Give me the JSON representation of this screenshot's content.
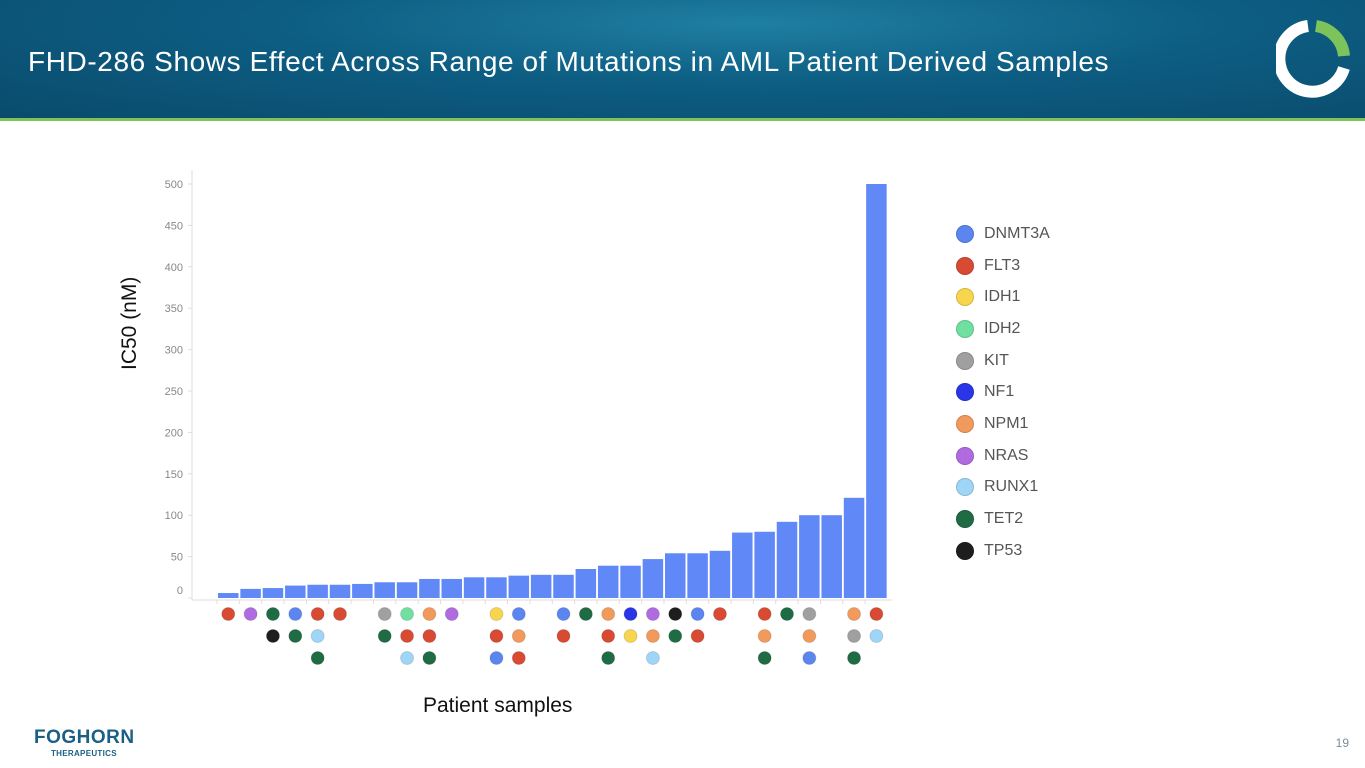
{
  "header": {
    "title": "FHD-286 Shows Effect Across Range of Mutations in AML Patient Derived Samples"
  },
  "footer": {
    "logo_text": "FOGHORN",
    "logo_sub": "THERAPEUTICS",
    "page_number": "19"
  },
  "colors": {
    "bar": "#6088f7",
    "logo_green": "#7cc35b",
    "brand_blue": "#1b5f86"
  },
  "chart_data": {
    "type": "bar",
    "title": "",
    "xlabel": "Patient samples",
    "ylabel": "IC50 (nM)",
    "ylim": [
      0,
      500
    ],
    "yticks": [
      0,
      50,
      100,
      150,
      200,
      250,
      300,
      350,
      400,
      450,
      500
    ],
    "values": [
      6,
      11,
      12,
      15,
      16,
      16,
      17,
      19,
      19,
      23,
      23,
      25,
      25,
      27,
      28,
      28,
      35,
      39,
      39,
      47,
      54,
      54,
      57,
      79,
      80,
      92,
      100,
      100,
      121,
      500
    ],
    "legend": [
      {
        "name": "DNMT3A",
        "color": "#5b86f0"
      },
      {
        "name": "FLT3",
        "color": "#d94a32"
      },
      {
        "name": "IDH1",
        "color": "#f7d54c"
      },
      {
        "name": "IDH2",
        "color": "#6fe0a0"
      },
      {
        "name": "KIT",
        "color": "#a0a0a0"
      },
      {
        "name": "NF1",
        "color": "#2a35e8"
      },
      {
        "name": "NPM1",
        "color": "#f29a5c"
      },
      {
        "name": "NRAS",
        "color": "#b06be0"
      },
      {
        "name": "RUNX1",
        "color": "#9fd6f7"
      },
      {
        "name": "TET2",
        "color": "#1f6b44"
      },
      {
        "name": "TP53",
        "color": "#1e1e1e"
      }
    ],
    "mutations": [
      [
        "FLT3"
      ],
      [
        "NRAS"
      ],
      [
        "TET2",
        "TP53"
      ],
      [
        "DNMT3A",
        "TET2"
      ],
      [
        "FLT3",
        "RUNX1",
        "TET2"
      ],
      [
        "FLT3"
      ],
      [],
      [
        "KIT",
        "TET2"
      ],
      [
        "IDH2",
        "FLT3",
        "RUNX1"
      ],
      [
        "NPM1",
        "FLT3",
        "TET2"
      ],
      [
        "NRAS"
      ],
      [],
      [
        "IDH1",
        "FLT3",
        "DNMT3A"
      ],
      [
        "DNMT3A",
        "NPM1",
        "FLT3"
      ],
      [],
      [
        "DNMT3A",
        "FLT3"
      ],
      [
        "TET2"
      ],
      [
        "NPM1",
        "FLT3",
        "TET2"
      ],
      [
        "NF1",
        "IDH1"
      ],
      [
        "NRAS",
        "NPM1",
        "RUNX1"
      ],
      [
        "TP53",
        "TET2"
      ],
      [
        "DNMT3A",
        "FLT3"
      ],
      [
        "FLT3"
      ],
      [],
      [
        "FLT3",
        "NPM1",
        "TET2"
      ],
      [
        "TET2"
      ],
      [
        "KIT",
        "NPM1",
        "DNMT3A"
      ],
      [],
      [
        "NPM1",
        "KIT",
        "TET2"
      ],
      [
        "FLT3",
        "RUNX1"
      ]
    ],
    "legend_position": "right",
    "grid": false
  }
}
